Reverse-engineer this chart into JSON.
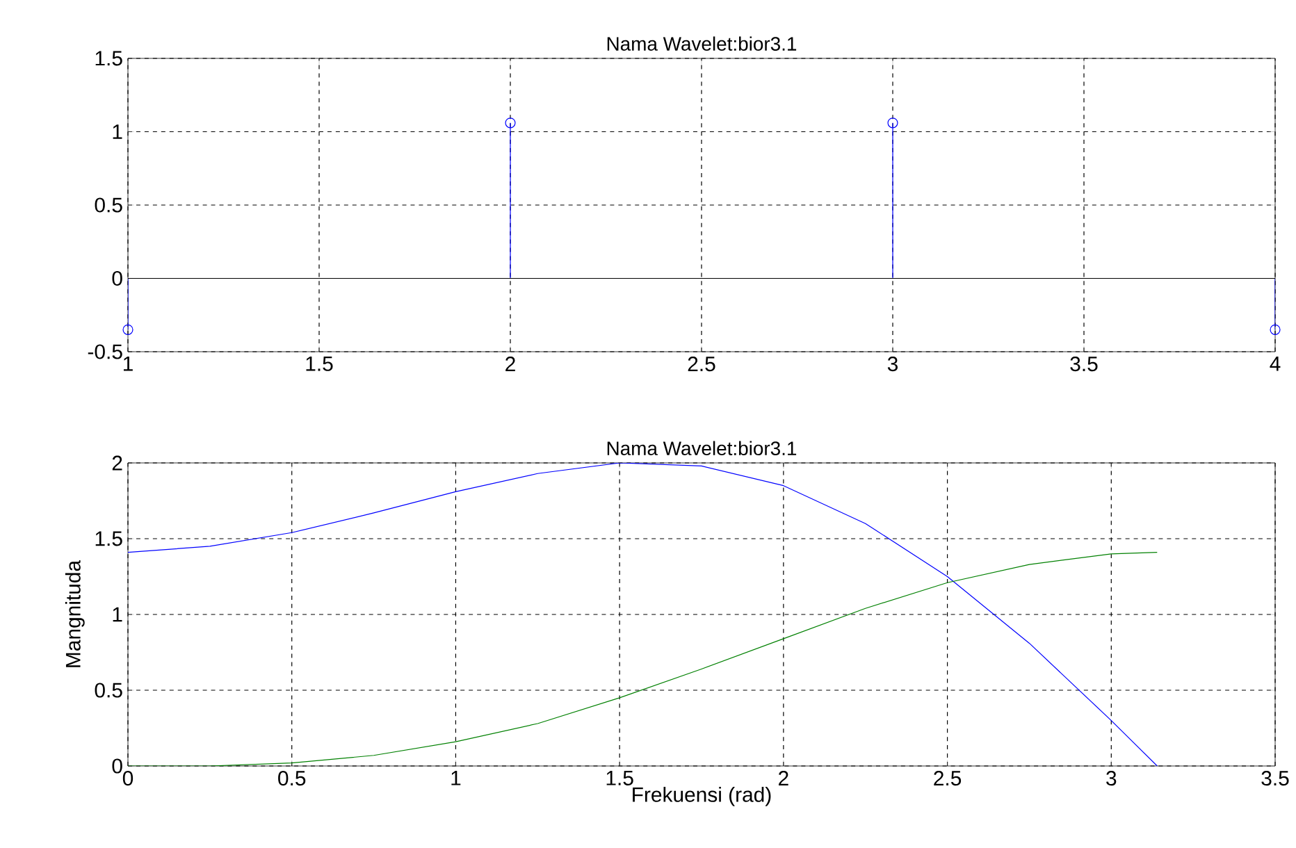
{
  "chart_data": [
    {
      "type": "lollipop",
      "title": "Nama Wavelet:bior3.1",
      "x": [
        1,
        2,
        3,
        4
      ],
      "series": [
        {
          "color": "#0000ff",
          "values": [
            -0.35,
            1.06,
            1.06,
            -0.35
          ]
        }
      ],
      "marker": "circle",
      "xlim": [
        1,
        4
      ],
      "xticks": [
        1,
        1.5,
        2,
        2.5,
        3,
        3.5,
        4
      ],
      "ylim": [
        -0.5,
        1.5
      ],
      "yticks": [
        -0.5,
        0,
        0.5,
        1,
        1.5
      ],
      "grid": true
    },
    {
      "type": "line",
      "title": "Nama Wavelet:bior3.1",
      "xlabel": "Frekuensi (rad)",
      "ylabel": "Mangnituda",
      "x": [
        0,
        0.25,
        0.5,
        0.75,
        1,
        1.25,
        1.5,
        1.75,
        2,
        2.25,
        2.5,
        2.75,
        3,
        3.14
      ],
      "series": [
        {
          "color": "#0000ff",
          "values": [
            1.41,
            1.45,
            1.54,
            1.67,
            1.81,
            1.93,
            2.0,
            1.98,
            1.85,
            1.6,
            1.25,
            0.81,
            0.3,
            0
          ]
        },
        {
          "color": "#008000",
          "values": [
            0,
            0,
            0.02,
            0.07,
            0.16,
            0.28,
            0.45,
            0.64,
            0.84,
            1.04,
            1.21,
            1.33,
            1.4,
            1.41
          ]
        }
      ],
      "line_style": "solid",
      "xlim": [
        0,
        3.5
      ],
      "xticks": [
        0,
        0.5,
        1,
        1.5,
        2,
        2.5,
        3,
        3.5
      ],
      "ylim": [
        0,
        2
      ],
      "yticks": [
        0,
        0.5,
        1,
        1.5,
        2
      ],
      "grid": true
    }
  ]
}
